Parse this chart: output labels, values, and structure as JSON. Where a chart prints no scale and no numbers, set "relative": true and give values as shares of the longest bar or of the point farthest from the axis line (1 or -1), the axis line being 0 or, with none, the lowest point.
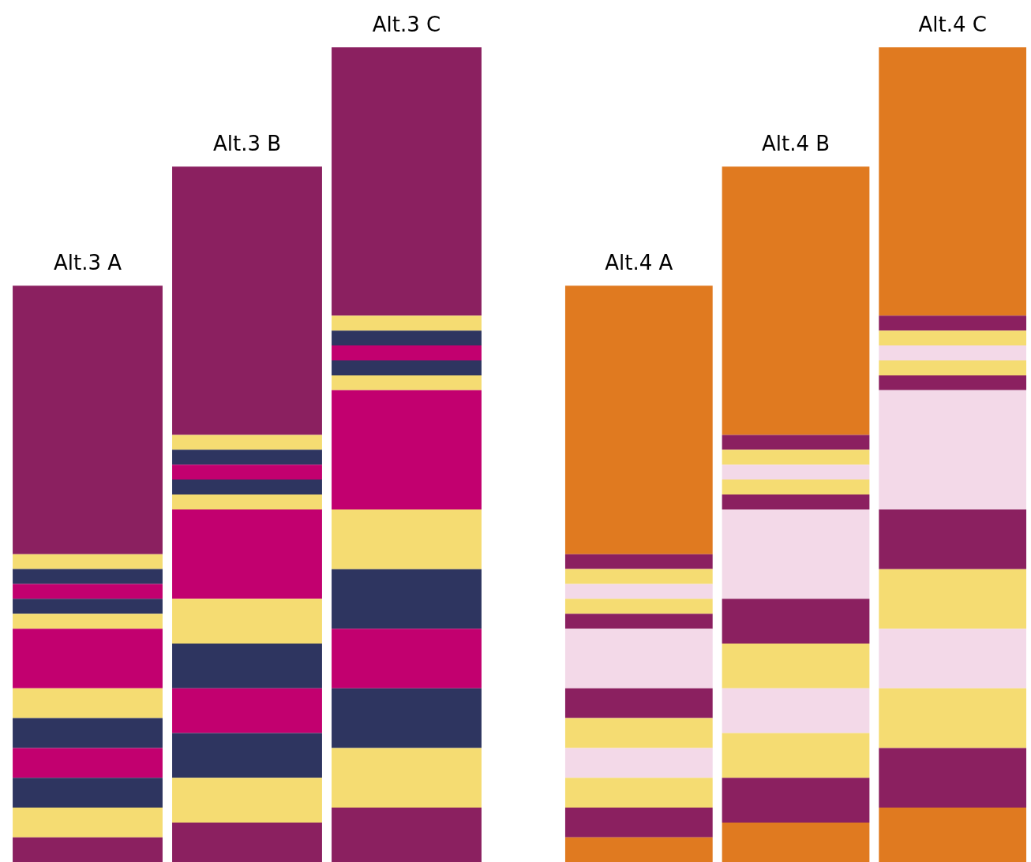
{
  "chart_data": [
    {
      "type": "bar",
      "stacked": true,
      "relative": true,
      "categories": [
        "Alt.3 A",
        "Alt.3 B",
        "Alt.3 C"
      ],
      "series": [
        {
          "color": "#8b2060",
          "values": [
            0.0302,
            0.0485,
            0.0667
          ]
        },
        {
          "color": "#f5dc72",
          "values": [
            0.0366,
            0.0549,
            0.0732
          ]
        },
        {
          "color": "#2e3560",
          "values": [
            0.0366,
            0.0549,
            0.0732
          ]
        },
        {
          "color": "#c2006f",
          "values": [
            0.0366,
            0.0549,
            0.0732
          ]
        },
        {
          "color": "#2e3560",
          "values": [
            0.0366,
            0.0549,
            0.0732
          ]
        },
        {
          "color": "#f5dc72",
          "values": [
            0.0366,
            0.0549,
            0.0732
          ]
        },
        {
          "color": "#c2006f",
          "values": [
            0.0732,
            0.1098,
            0.1464
          ]
        },
        {
          "color": "#f5dc72",
          "values": [
            0.0183,
            0.0183,
            0.0183
          ]
        },
        {
          "color": "#2e3560",
          "values": [
            0.0183,
            0.0183,
            0.0183
          ]
        },
        {
          "color": "#c2006f",
          "values": [
            0.0183,
            0.0183,
            0.0183
          ]
        },
        {
          "color": "#2e3560",
          "values": [
            0.0183,
            0.0183,
            0.0183
          ]
        },
        {
          "color": "#f5dc72",
          "values": [
            0.0183,
            0.0183,
            0.0183
          ]
        },
        {
          "color": "#8b2060",
          "values": [
            0.3294,
            0.3294,
            0.3294
          ]
        }
      ]
    },
    {
      "type": "bar",
      "stacked": true,
      "relative": true,
      "categories": [
        "Alt.4 A",
        "Alt.4 B",
        "Alt.4 C"
      ],
      "series": [
        {
          "color": "#e07a20",
          "values": [
            0.0302,
            0.0485,
            0.0667
          ]
        },
        {
          "color": "#8b2060",
          "values": [
            0.0366,
            0.0549,
            0.0732
          ]
        },
        {
          "color": "#f5dc72",
          "values": [
            0.0366,
            0.0549,
            0.0732
          ]
        },
        {
          "color": "#f3d9e8",
          "values": [
            0.0366,
            0.0549,
            0.0732
          ]
        },
        {
          "color": "#f5dc72",
          "values": [
            0.0366,
            0.0549,
            0.0732
          ]
        },
        {
          "color": "#8b2060",
          "values": [
            0.0366,
            0.0549,
            0.0732
          ]
        },
        {
          "color": "#f3d9e8",
          "values": [
            0.0732,
            0.1098,
            0.1464
          ]
        },
        {
          "color": "#8b2060",
          "values": [
            0.0183,
            0.0183,
            0.0183
          ]
        },
        {
          "color": "#f5dc72",
          "values": [
            0.0183,
            0.0183,
            0.0183
          ]
        },
        {
          "color": "#f3d9e8",
          "values": [
            0.0183,
            0.0183,
            0.0183
          ]
        },
        {
          "color": "#f5dc72",
          "values": [
            0.0183,
            0.0183,
            0.0183
          ]
        },
        {
          "color": "#8b2060",
          "values": [
            0.0183,
            0.0183,
            0.0183
          ]
        },
        {
          "color": "#e07a20",
          "values": [
            0.3294,
            0.3294,
            0.3294
          ]
        }
      ]
    }
  ]
}
